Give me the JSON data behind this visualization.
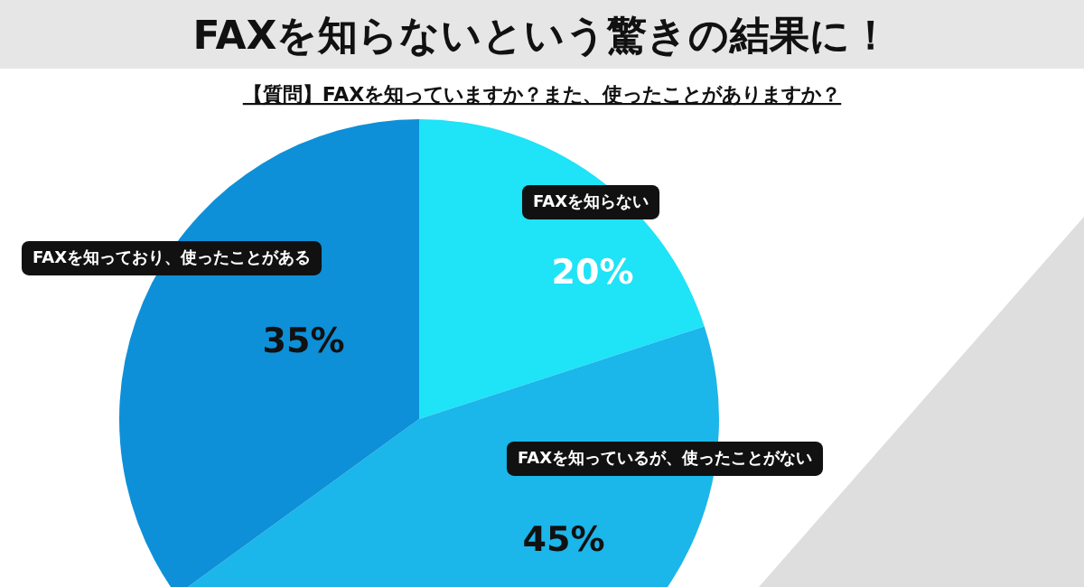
{
  "chart_data": {
    "type": "pie",
    "title": "FAXを知らないという驚きの結果に！",
    "subtitle": "【質問】FAXを知っていますか？また、使ったことがありますか？",
    "categories": [
      "FAXを知らない",
      "FAXを知っているが、使ったことがない",
      "FAXを知っており、使ったことがある"
    ],
    "values": [
      20,
      45,
      35
    ],
    "colors": [
      "#1fe3f7",
      "#1bb6ea",
      "#0d90d8"
    ],
    "value_labels": [
      "20%",
      "45%",
      "35%"
    ]
  }
}
